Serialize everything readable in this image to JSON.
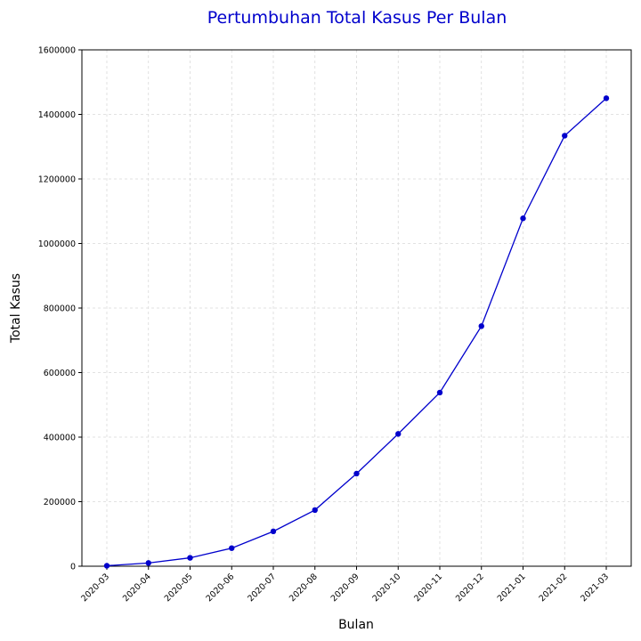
{
  "chart_data": {
    "type": "line",
    "title": "Pertumbuhan Total Kasus Per Bulan",
    "xlabel": "Bulan",
    "ylabel": "Total Kasus",
    "categories": [
      "2020-03",
      "2020-04",
      "2020-05",
      "2020-06",
      "2020-07",
      "2020-08",
      "2020-09",
      "2020-10",
      "2020-11",
      "2020-12",
      "2021-01",
      "2021-02",
      "2021-03"
    ],
    "series": [
      {
        "values": [
          1500,
          10000,
          26000,
          56000,
          108000,
          174000,
          287000,
          410000,
          538000,
          744000,
          1078000,
          1334000,
          1450000
        ],
        "color": "#0000cc",
        "marker": "circle"
      }
    ],
    "ylim": [
      0,
      1600000
    ],
    "yticks": [
      0,
      200000,
      400000,
      600000,
      800000,
      1000000,
      1200000,
      1400000,
      1600000
    ],
    "grid": true,
    "legend": "none",
    "colors": {
      "title": "#0000cc",
      "line": "#0000cc",
      "grid": "#d9d9d9",
      "axis": "#000000"
    }
  }
}
